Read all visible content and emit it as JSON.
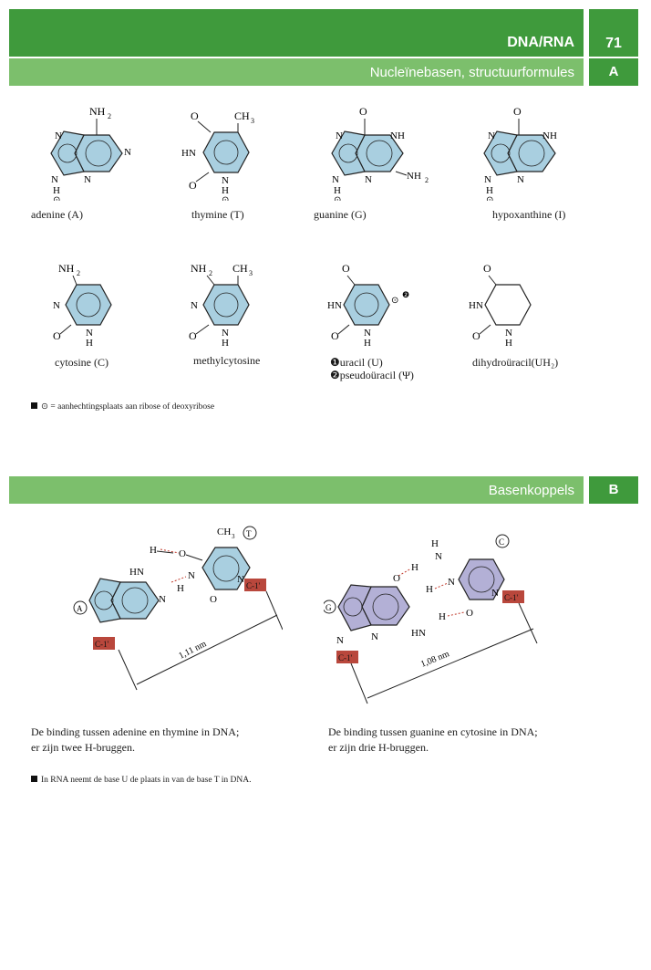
{
  "header": {
    "title": "DNA/RNA",
    "page_number": "71",
    "subtitle_a": "Nucleïnebasen, structuurformules",
    "tab_a": "A",
    "subtitle_b": "Basenkoppels",
    "tab_b": "B"
  },
  "section_a": {
    "bases": [
      {
        "label": "adenine (A)"
      },
      {
        "label": "thymine (T)"
      },
      {
        "label": "guanine (G)"
      },
      {
        "label": "hypoxanthine (I)"
      },
      {
        "label": "cytosine (C)"
      },
      {
        "label": "methylcytosine"
      },
      {
        "label": "uracil (U)"
      },
      {
        "label": "pseudoüracil (Ψ)"
      },
      {
        "label": "dihydroüracil(UH₂)"
      }
    ],
    "footnote": "⊙ = aanhechtingsplaats aan ribose of deoxyribose"
  },
  "section_b": {
    "at_distance": "1,11 nm",
    "gc_distance": "1,08 nm",
    "caption_at_line1": "De binding tussen adenine en thymine in DNA;",
    "caption_at_line2": "er zijn twee H-bruggen.",
    "caption_gc_line1": "De binding tussen guanine en cytosine in DNA;",
    "caption_gc_line2": "er zijn drie H-bruggen.",
    "footnote": "In RNA neemt de base U de plaats in van de base T in DNA."
  },
  "colors": {
    "header_dark": "#3f9a3c",
    "header_light": "#7cbf6c",
    "ring_blue": "#a9cfe0",
    "ring_purple": "#b3b0d6",
    "c1_box": "#b9473c",
    "h_bond": "#c0392b"
  }
}
